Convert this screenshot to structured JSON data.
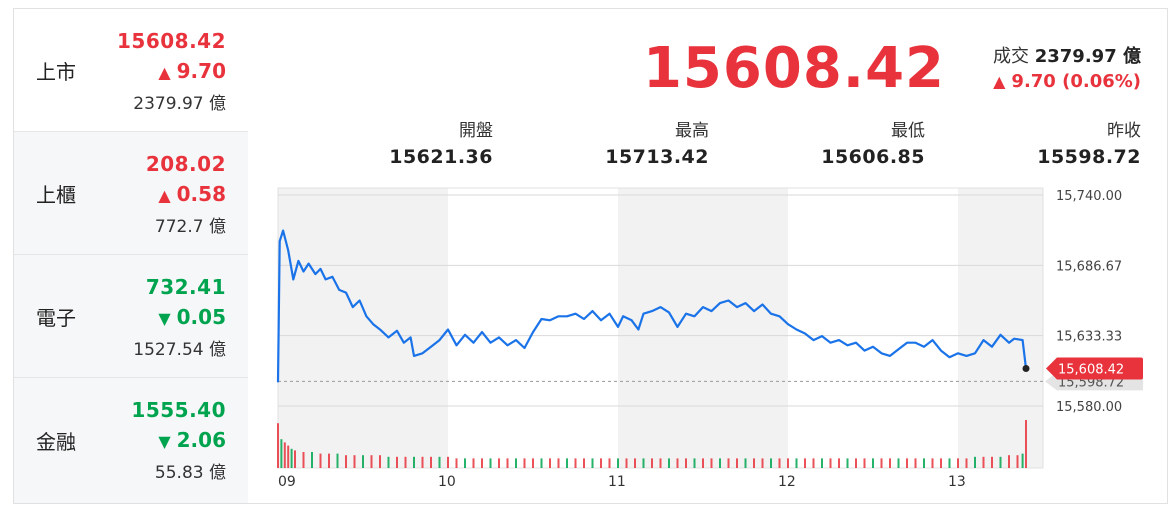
{
  "indices": [
    {
      "name": "上市",
      "price": "15608.42",
      "change": "9.70",
      "dir": "up",
      "volume": "2379.97 億"
    },
    {
      "name": "上櫃",
      "price": "208.02",
      "change": "0.58",
      "dir": "up",
      "volume": "772.7 億"
    },
    {
      "name": "電子",
      "price": "732.41",
      "change": "0.05",
      "dir": "down",
      "volume": "1527.54 億"
    },
    {
      "name": "金融",
      "price": "1555.40",
      "change": "2.06",
      "dir": "down",
      "volume": "55.83 億"
    }
  ],
  "header": {
    "price": "15608.42",
    "turnover_label": "成交",
    "turnover_value": "2379.97 億",
    "change_text": "9.70 (0.06%)"
  },
  "stats": [
    {
      "label": "開盤",
      "value": "15621.36"
    },
    {
      "label": "最高",
      "value": "15713.42"
    },
    {
      "label": "最低",
      "value": "15606.85"
    },
    {
      "label": "昨收",
      "value": "15598.72"
    }
  ],
  "colors": {
    "up": "#e8323c",
    "down": "#00a44f",
    "line": "#1a73e8"
  },
  "chart_data": {
    "type": "line",
    "ylim": [
      15580.0,
      15740.0
    ],
    "y_ticks": [
      "15,740.00",
      "15,686.67",
      "15,633.33",
      "15,580.00"
    ],
    "x_ticks": [
      "09",
      "10",
      "11",
      "12",
      "13"
    ],
    "prev_close": 15598.72,
    "prev_close_label": "15,598.72",
    "last_label": "15,608.42",
    "series": [
      {
        "values": [
          [
            9.0,
            15598
          ],
          [
            9.01,
            15705
          ],
          [
            9.03,
            15713
          ],
          [
            9.06,
            15698
          ],
          [
            9.09,
            15676
          ],
          [
            9.12,
            15690
          ],
          [
            9.15,
            15682
          ],
          [
            9.18,
            15688
          ],
          [
            9.22,
            15680
          ],
          [
            9.25,
            15684
          ],
          [
            9.28,
            15676
          ],
          [
            9.32,
            15678
          ],
          [
            9.36,
            15668
          ],
          [
            9.4,
            15666
          ],
          [
            9.44,
            15655
          ],
          [
            9.48,
            15660
          ],
          [
            9.52,
            15648
          ],
          [
            9.56,
            15642
          ],
          [
            9.6,
            15638
          ],
          [
            9.65,
            15632
          ],
          [
            9.7,
            15637
          ],
          [
            9.74,
            15628
          ],
          [
            9.78,
            15632
          ],
          [
            9.8,
            15618
          ],
          [
            9.85,
            15620
          ],
          [
            9.9,
            15625
          ],
          [
            9.95,
            15630
          ],
          [
            10.0,
            15638
          ],
          [
            10.05,
            15626
          ],
          [
            10.1,
            15634
          ],
          [
            10.15,
            15628
          ],
          [
            10.2,
            15636
          ],
          [
            10.25,
            15628
          ],
          [
            10.3,
            15632
          ],
          [
            10.35,
            15626
          ],
          [
            10.4,
            15630
          ],
          [
            10.45,
            15624
          ],
          [
            10.5,
            15636
          ],
          [
            10.55,
            15646
          ],
          [
            10.6,
            15645
          ],
          [
            10.65,
            15648
          ],
          [
            10.7,
            15648
          ],
          [
            10.75,
            15650
          ],
          [
            10.8,
            15646
          ],
          [
            10.85,
            15652
          ],
          [
            10.9,
            15645
          ],
          [
            10.95,
            15650
          ],
          [
            11.0,
            15640
          ],
          [
            11.03,
            15648
          ],
          [
            11.08,
            15645
          ],
          [
            11.12,
            15638
          ],
          [
            11.15,
            15650
          ],
          [
            11.2,
            15652
          ],
          [
            11.25,
            15655
          ],
          [
            11.3,
            15651
          ],
          [
            11.35,
            15640
          ],
          [
            11.4,
            15650
          ],
          [
            11.45,
            15648
          ],
          [
            11.5,
            15655
          ],
          [
            11.55,
            15652
          ],
          [
            11.6,
            15658
          ],
          [
            11.65,
            15660
          ],
          [
            11.7,
            15655
          ],
          [
            11.75,
            15658
          ],
          [
            11.8,
            15652
          ],
          [
            11.85,
            15657
          ],
          [
            11.9,
            15650
          ],
          [
            11.95,
            15648
          ],
          [
            12.0,
            15642
          ],
          [
            12.05,
            15638
          ],
          [
            12.1,
            15635
          ],
          [
            12.15,
            15630
          ],
          [
            12.2,
            15633
          ],
          [
            12.25,
            15628
          ],
          [
            12.3,
            15630
          ],
          [
            12.35,
            15626
          ],
          [
            12.4,
            15628
          ],
          [
            12.45,
            15622
          ],
          [
            12.5,
            15625
          ],
          [
            12.55,
            15620
          ],
          [
            12.6,
            15618
          ],
          [
            12.65,
            15623
          ],
          [
            12.7,
            15628
          ],
          [
            12.75,
            15628
          ],
          [
            12.8,
            15625
          ],
          [
            12.85,
            15630
          ],
          [
            12.9,
            15622
          ],
          [
            12.95,
            15617
          ],
          [
            13.0,
            15620
          ],
          [
            13.05,
            15618
          ],
          [
            13.1,
            15620
          ],
          [
            13.15,
            15630
          ],
          [
            13.2,
            15625
          ],
          [
            13.25,
            15634
          ],
          [
            13.3,
            15628
          ],
          [
            13.33,
            15631
          ],
          [
            13.38,
            15630
          ],
          [
            13.4,
            15608.42
          ]
        ]
      }
    ],
    "volume": [
      [
        9.0,
        28
      ],
      [
        9.02,
        18
      ],
      [
        9.04,
        16
      ],
      [
        9.06,
        14
      ],
      [
        9.08,
        12
      ],
      [
        9.1,
        11
      ],
      [
        9.15,
        10
      ],
      [
        9.2,
        10
      ],
      [
        9.25,
        9
      ],
      [
        9.3,
        9
      ],
      [
        9.35,
        9
      ],
      [
        9.4,
        8
      ],
      [
        9.45,
        8
      ],
      [
        9.5,
        8
      ],
      [
        9.55,
        8
      ],
      [
        9.6,
        8
      ],
      [
        9.65,
        7
      ],
      [
        9.7,
        7
      ],
      [
        9.75,
        7
      ],
      [
        9.8,
        7
      ],
      [
        9.85,
        7
      ],
      [
        9.9,
        7
      ],
      [
        9.95,
        7
      ],
      [
        10.0,
        7
      ],
      [
        10.05,
        6
      ],
      [
        10.1,
        6
      ],
      [
        10.15,
        6
      ],
      [
        10.2,
        6
      ],
      [
        10.25,
        6
      ],
      [
        10.3,
        6
      ],
      [
        10.35,
        6
      ],
      [
        10.4,
        6
      ],
      [
        10.45,
        6
      ],
      [
        10.5,
        6
      ],
      [
        10.55,
        6
      ],
      [
        10.6,
        6
      ],
      [
        10.65,
        6
      ],
      [
        10.7,
        6
      ],
      [
        10.75,
        6
      ],
      [
        10.8,
        6
      ],
      [
        10.85,
        6
      ],
      [
        10.9,
        6
      ],
      [
        10.95,
        6
      ],
      [
        11.0,
        6
      ],
      [
        11.05,
        6
      ],
      [
        11.1,
        6
      ],
      [
        11.15,
        6
      ],
      [
        11.2,
        6
      ],
      [
        11.25,
        6
      ],
      [
        11.3,
        6
      ],
      [
        11.35,
        6
      ],
      [
        11.4,
        6
      ],
      [
        11.45,
        6
      ],
      [
        11.5,
        6
      ],
      [
        11.55,
        6
      ],
      [
        11.6,
        6
      ],
      [
        11.65,
        6
      ],
      [
        11.7,
        6
      ],
      [
        11.75,
        6
      ],
      [
        11.8,
        6
      ],
      [
        11.85,
        6
      ],
      [
        11.9,
        6
      ],
      [
        11.95,
        6
      ],
      [
        12.0,
        6
      ],
      [
        12.05,
        6
      ],
      [
        12.1,
        6
      ],
      [
        12.15,
        6
      ],
      [
        12.2,
        6
      ],
      [
        12.25,
        6
      ],
      [
        12.3,
        6
      ],
      [
        12.35,
        6
      ],
      [
        12.4,
        6
      ],
      [
        12.45,
        6
      ],
      [
        12.5,
        6
      ],
      [
        12.55,
        6
      ],
      [
        12.6,
        6
      ],
      [
        12.65,
        6
      ],
      [
        12.7,
        6
      ],
      [
        12.75,
        6
      ],
      [
        12.8,
        6
      ],
      [
        12.85,
        6
      ],
      [
        12.9,
        6
      ],
      [
        12.95,
        6
      ],
      [
        13.0,
        6
      ],
      [
        13.05,
        6
      ],
      [
        13.1,
        7
      ],
      [
        13.15,
        7
      ],
      [
        13.2,
        7
      ],
      [
        13.25,
        7
      ],
      [
        13.3,
        8
      ],
      [
        13.35,
        8
      ],
      [
        13.38,
        9
      ],
      [
        13.4,
        30
      ]
    ]
  }
}
